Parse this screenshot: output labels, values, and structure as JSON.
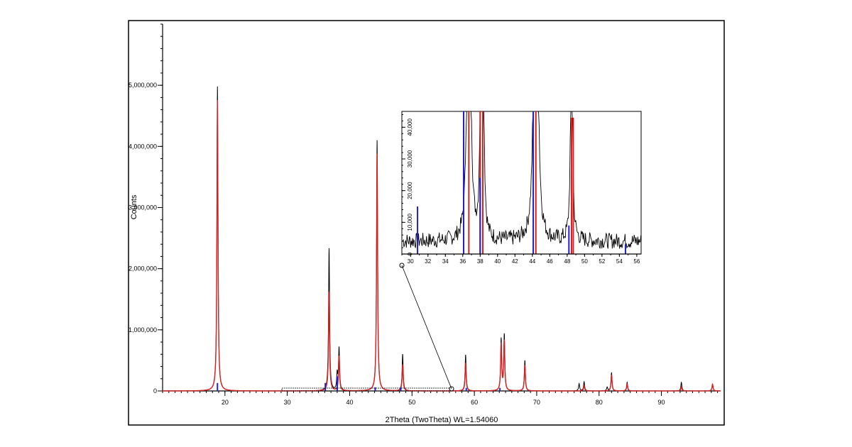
{
  "chart_data": [
    {
      "type": "line",
      "title": "",
      "xlabel": "2Theta (TwoTheta) WL=1.54060",
      "ylabel": "Counts",
      "xlim": [
        10,
        99.5
      ],
      "ylim": [
        0,
        6000000
      ],
      "x_ticks": [
        "20",
        "30",
        "40",
        "50",
        "60",
        "70",
        "80",
        "90"
      ],
      "y_ticks": [
        "0",
        "1,000,000",
        "2,000,000",
        "3,000,000",
        "4,000,000",
        "5,000,000"
      ],
      "grid": false,
      "legend": "none",
      "series": [
        {
          "color": "#000000",
          "style": "line",
          "peaks": [
            [
              18.8,
              4980000
            ],
            [
              36.7,
              2330000
            ],
            [
              38.0,
              260000
            ],
            [
              38.3,
              690000
            ],
            [
              44.4,
              4100000
            ],
            [
              48.5,
              600000
            ],
            [
              58.6,
              590000
            ],
            [
              64.3,
              840000
            ],
            [
              64.8,
              910000
            ],
            [
              68.1,
              500000
            ],
            [
              76.8,
              120000
            ],
            [
              77.6,
              150000
            ],
            [
              81.3,
              60000
            ],
            [
              82.0,
              300000
            ],
            [
              84.5,
              140000
            ],
            [
              93.2,
              140000
            ],
            [
              98.2,
              100000
            ]
          ]
        },
        {
          "color": "#d62020",
          "style": "line",
          "peaks": [
            [
              18.8,
              4760000
            ],
            [
              36.7,
              1620000
            ],
            [
              38.3,
              570000
            ],
            [
              44.4,
              3880000
            ],
            [
              48.5,
              430000
            ],
            [
              58.6,
              460000
            ],
            [
              64.3,
              760000
            ],
            [
              64.8,
              810000
            ],
            [
              68.1,
              420000
            ],
            [
              77.6,
              90000
            ],
            [
              82.0,
              260000
            ],
            [
              84.5,
              110000
            ],
            [
              93.2,
              70000
            ],
            [
              98.2,
              110000
            ]
          ]
        },
        {
          "color": "#2020d0",
          "style": "sticks",
          "peaks": [
            [
              18.8,
              130000
            ],
            [
              36.1,
              130000
            ],
            [
              38.0,
              240000
            ],
            [
              44.1,
              60000
            ],
            [
              48.2,
              60000
            ],
            [
              58.7,
              50000
            ],
            [
              64.1,
              50000
            ]
          ]
        }
      ]
    },
    {
      "type": "line",
      "title": "",
      "xlabel": "",
      "ylabel": "",
      "xlim": [
        29,
        56.5
      ],
      "ylim": [
        0,
        45000
      ],
      "x_ticks": [
        "30",
        "32",
        "34",
        "36",
        "38",
        "40",
        "42",
        "44",
        "46",
        "48",
        "50",
        "52",
        "54",
        "56"
      ],
      "y_ticks": [
        "0",
        "10,000",
        "20,000",
        "30,000",
        "40,000"
      ],
      "grid": false,
      "legend": "none",
      "series": [
        {
          "color": "#000000",
          "style": "noisy-line",
          "baseline": 4000,
          "peaks": [
            [
              36.7,
              300000
            ],
            [
              38.3,
              100000
            ],
            [
              44.4,
              400000
            ],
            [
              48.5,
              80000
            ],
            [
              38.0,
              26000
            ]
          ]
        },
        {
          "color": "#d62020",
          "style": "sticks",
          "peaks": [
            [
              36.7,
              160000
            ],
            [
              38.0,
              50000
            ],
            [
              38.3,
              57000
            ],
            [
              44.4,
              380000
            ],
            [
              48.5,
              43000
            ],
            [
              48.7,
              43000
            ]
          ]
        },
        {
          "color": "#2020d0",
          "style": "sticks",
          "peaks": [
            [
              30.8,
              15000
            ],
            [
              36.1,
              130000
            ],
            [
              38.0,
              24000
            ],
            [
              44.1,
              60000
            ],
            [
              48.2,
              9000
            ],
            [
              54.7,
              3000
            ]
          ]
        }
      ]
    }
  ]
}
